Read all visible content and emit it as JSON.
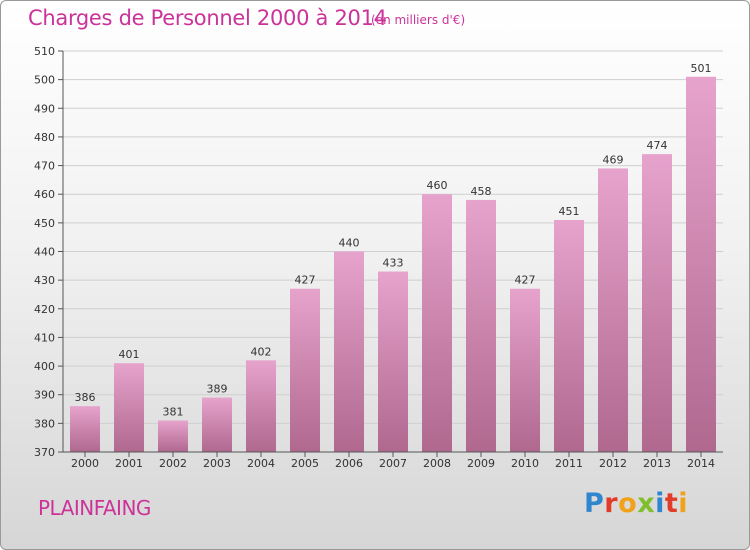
{
  "chart_data": {
    "type": "bar",
    "title": "Charges de Personnel 2000 à 2014",
    "unit_label": "(en milliers d'€)",
    "categories": [
      "2000",
      "2001",
      "2002",
      "2003",
      "2004",
      "2005",
      "2006",
      "2007",
      "2008",
      "2009",
      "2010",
      "2011",
      "2012",
      "2013",
      "2014"
    ],
    "values": [
      386,
      401,
      381,
      389,
      402,
      427,
      440,
      433,
      460,
      458,
      427,
      451,
      469,
      474,
      501
    ],
    "ylim": [
      370,
      510
    ],
    "yticks": [
      370,
      380,
      390,
      400,
      410,
      420,
      430,
      440,
      450,
      460,
      470,
      480,
      490,
      500,
      510
    ],
    "grid": true,
    "bar_color_top": "#e6a3cc",
    "bar_color_bottom": "#b0688f"
  },
  "footer": {
    "town": "PLAINFAING",
    "brand": "Proxiti",
    "brand_letters": [
      "P",
      "r",
      "o",
      "x",
      "i",
      "t",
      "i"
    ],
    "brand_colors": [
      "#2f86cf",
      "#e23b2a",
      "#f1a21a",
      "#7fbf2b",
      "#2f86cf",
      "#e23b2a",
      "#f1a21a"
    ]
  }
}
